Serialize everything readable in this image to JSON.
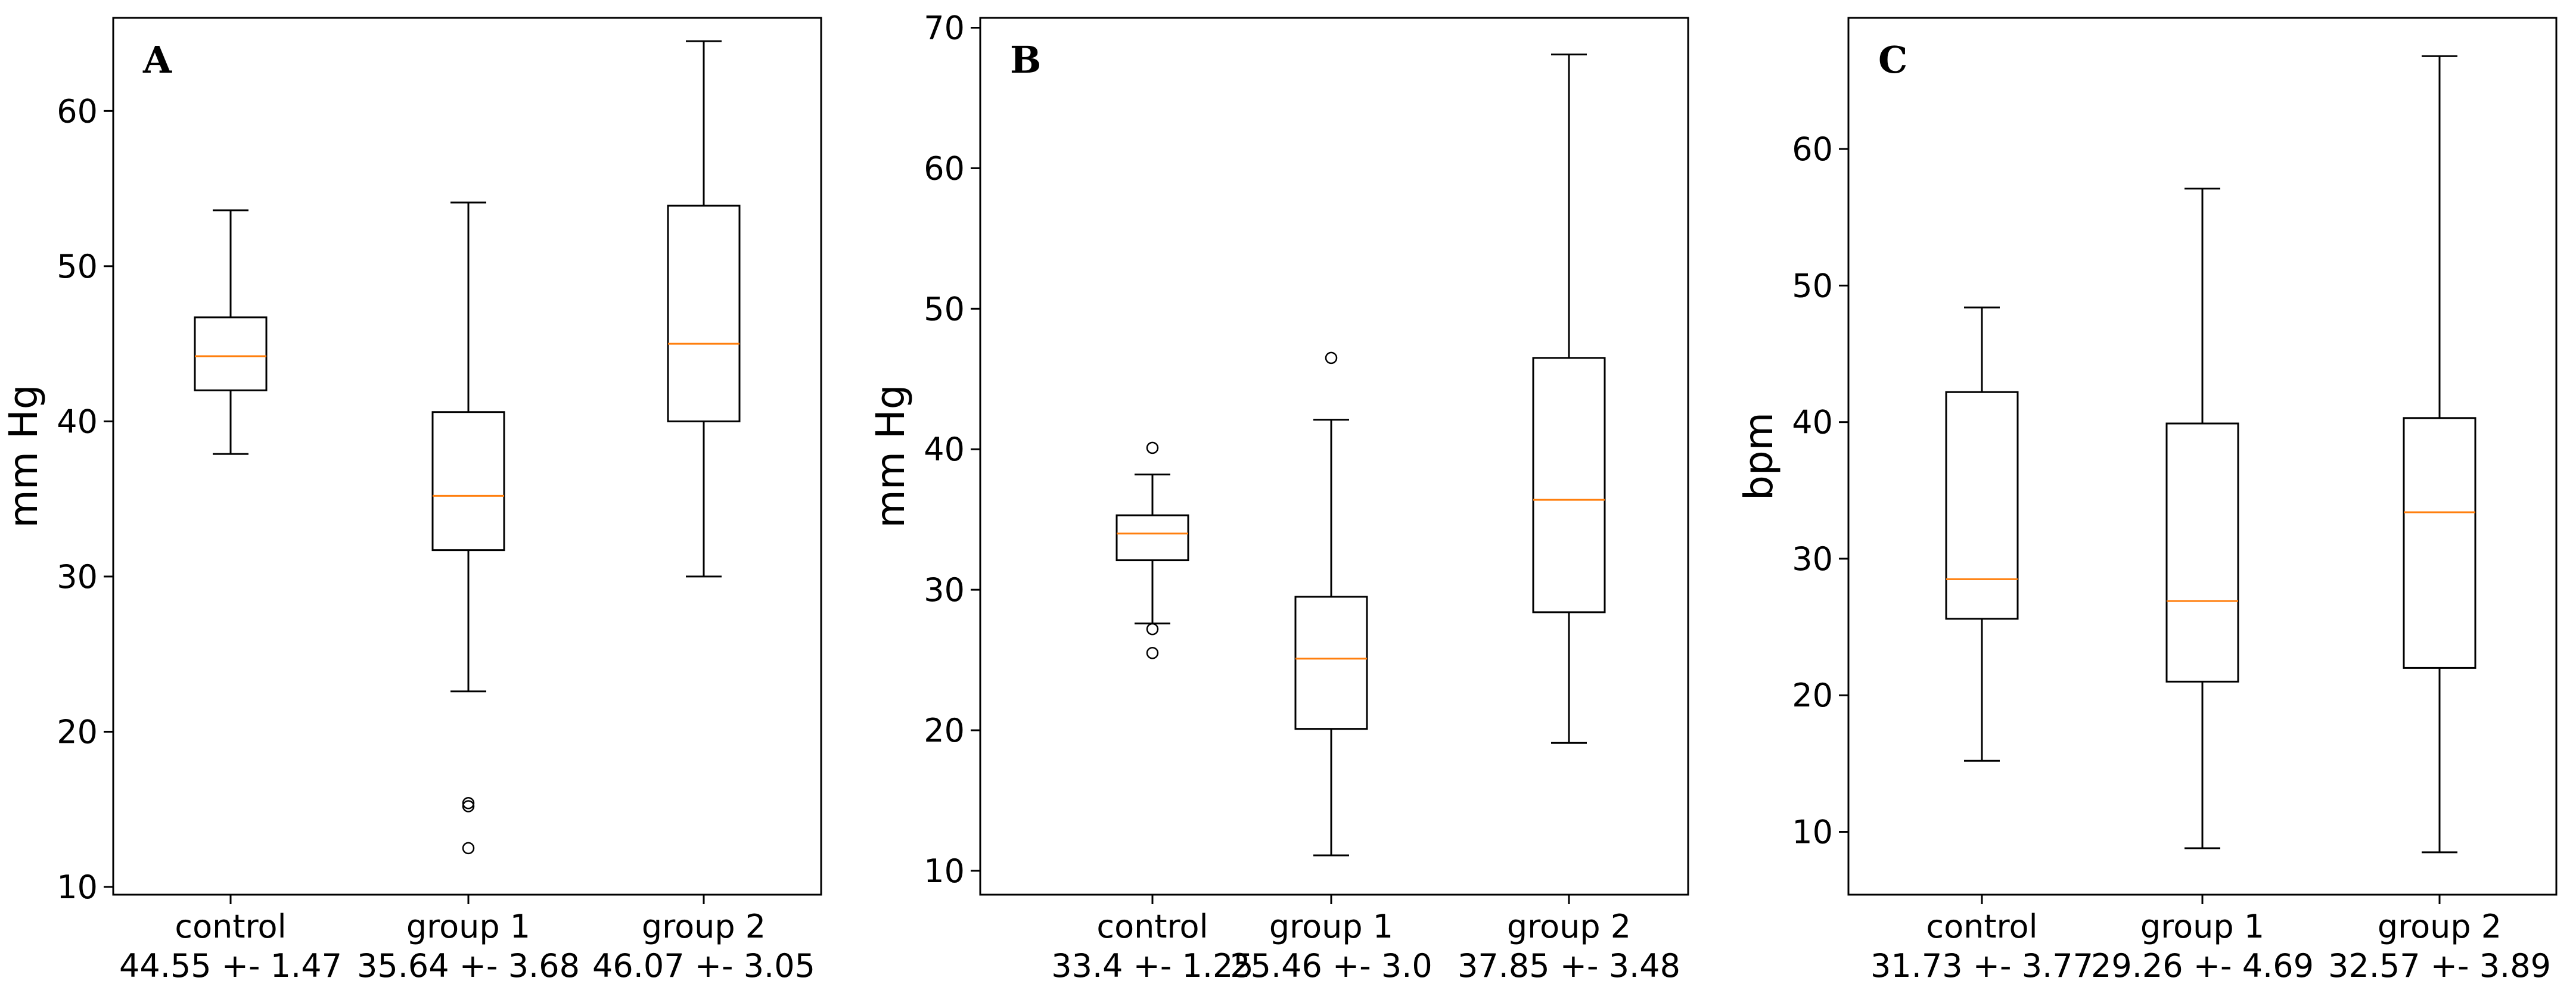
{
  "chart_data": [
    {
      "type": "box",
      "panel_label": "A",
      "ylabel": "mm Hg",
      "ylim": [
        9.5,
        66.0
      ],
      "yticks": [
        10,
        20,
        30,
        40,
        50,
        60
      ],
      "categories": [
        {
          "name": "control",
          "stat": "44.55 +- 1.47"
        },
        {
          "name": "group 1",
          "stat": "35.64 +- 3.68"
        },
        {
          "name": "group 2",
          "stat": "46.07 +- 3.05"
        }
      ],
      "boxes": [
        {
          "whisker_low": 37.9,
          "q1": 42.0,
          "median": 44.2,
          "q3": 46.7,
          "whisker_high": 53.6,
          "outliers": []
        },
        {
          "whisker_low": 22.6,
          "q1": 31.7,
          "median": 35.2,
          "q3": 40.6,
          "whisker_high": 54.1,
          "outliers": [
            12.5,
            15.2,
            15.4
          ]
        },
        {
          "whisker_low": 30.0,
          "q1": 40.0,
          "median": 45.0,
          "q3": 53.9,
          "whisker_high": 64.5,
          "outliers": []
        }
      ]
    },
    {
      "type": "box",
      "panel_label": "B",
      "ylabel": "mm Hg",
      "ylim": [
        8.3,
        70.7
      ],
      "yticks": [
        10,
        20,
        30,
        40,
        50,
        60,
        70
      ],
      "categories": [
        {
          "name": "control",
          "stat": "33.4 +- 1.25"
        },
        {
          "name": "group 1",
          "stat": "25.46 +- 3.0"
        },
        {
          "name": "group 2",
          "stat": "37.85 +- 3.48"
        }
      ],
      "boxes": [
        {
          "whisker_low": 27.6,
          "q1": 32.1,
          "median": 34.0,
          "q3": 35.3,
          "whisker_high": 38.2,
          "outliers": [
            25.5,
            27.2,
            40.1
          ]
        },
        {
          "whisker_low": 11.1,
          "q1": 20.1,
          "median": 25.1,
          "q3": 29.5,
          "whisker_high": 42.1,
          "outliers": [
            46.5
          ]
        },
        {
          "whisker_low": 19.1,
          "q1": 28.4,
          "median": 36.4,
          "q3": 46.5,
          "whisker_high": 68.1,
          "outliers": []
        }
      ]
    },
    {
      "type": "box",
      "panel_label": "C",
      "ylabel": "bpm",
      "ylim": [
        5.4,
        69.6
      ],
      "yticks": [
        10,
        20,
        30,
        40,
        50,
        60
      ],
      "categories": [
        {
          "name": "control",
          "stat": "31.73 +- 3.77"
        },
        {
          "name": "group 1",
          "stat": "29.26 +- 4.69"
        },
        {
          "name": "group 2",
          "stat": "32.57 +- 3.89"
        }
      ],
      "boxes": [
        {
          "whisker_low": 15.2,
          "q1": 25.6,
          "median": 28.5,
          "q3": 42.2,
          "whisker_high": 48.4,
          "outliers": []
        },
        {
          "whisker_low": 8.8,
          "q1": 21.0,
          "median": 26.9,
          "q3": 39.9,
          "whisker_high": 57.1,
          "outliers": []
        },
        {
          "whisker_low": 8.5,
          "q1": 22.0,
          "median": 33.4,
          "q3": 40.3,
          "whisker_high": 66.8,
          "outliers": []
        }
      ]
    }
  ],
  "colors": {
    "box": "#000000",
    "median": "#ff7f0e",
    "axes": "#000000",
    "background": "#ffffff"
  }
}
